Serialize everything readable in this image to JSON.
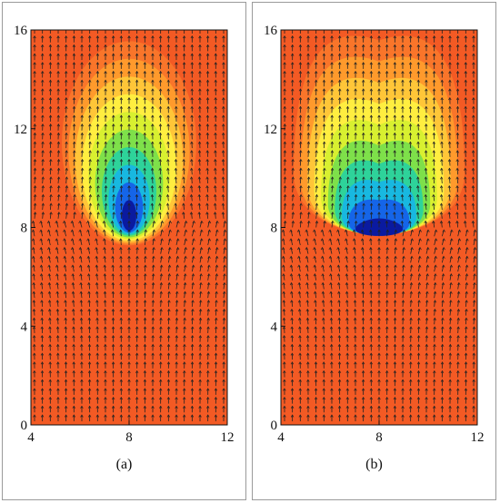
{
  "chart_data": [
    {
      "type": "heatmap",
      "caption": "(a)",
      "xlim": [
        4,
        12
      ],
      "ylim": [
        0,
        16
      ],
      "xticks": [
        4,
        8,
        12
      ],
      "yticks": [
        0,
        4,
        8,
        12,
        16
      ],
      "field": {
        "center_x": 8,
        "center_y": 8.3,
        "min_shape": "vertical-ellipse",
        "wake": "upward plume"
      },
      "colormap": [
        "#0a1aa0",
        "#1565e8",
        "#18b8e0",
        "#2ed39a",
        "#7ee04a",
        "#d8f030",
        "#ffee40",
        "#ffc638",
        "#ff9a2c",
        "#f9752a",
        "#f35a24"
      ],
      "vectors": "upward flow arrows"
    },
    {
      "type": "heatmap",
      "caption": "(b)",
      "xlim": [
        4,
        12
      ],
      "ylim": [
        0,
        16
      ],
      "xticks": [
        4,
        8,
        12
      ],
      "yticks": [
        0,
        4,
        8,
        12,
        16
      ],
      "field": {
        "center_x": 8,
        "center_y": 8.0,
        "min_shape": "horizontal-ellipse",
        "wake": "wide upward plume"
      },
      "colormap": [
        "#0a1aa0",
        "#1565e8",
        "#18b8e0",
        "#2ed39a",
        "#7ee04a",
        "#d8f030",
        "#ffee40",
        "#ffc638",
        "#ff9a2c",
        "#f9752a",
        "#f35a24"
      ],
      "vectors": "upward flow arrows"
    }
  ]
}
